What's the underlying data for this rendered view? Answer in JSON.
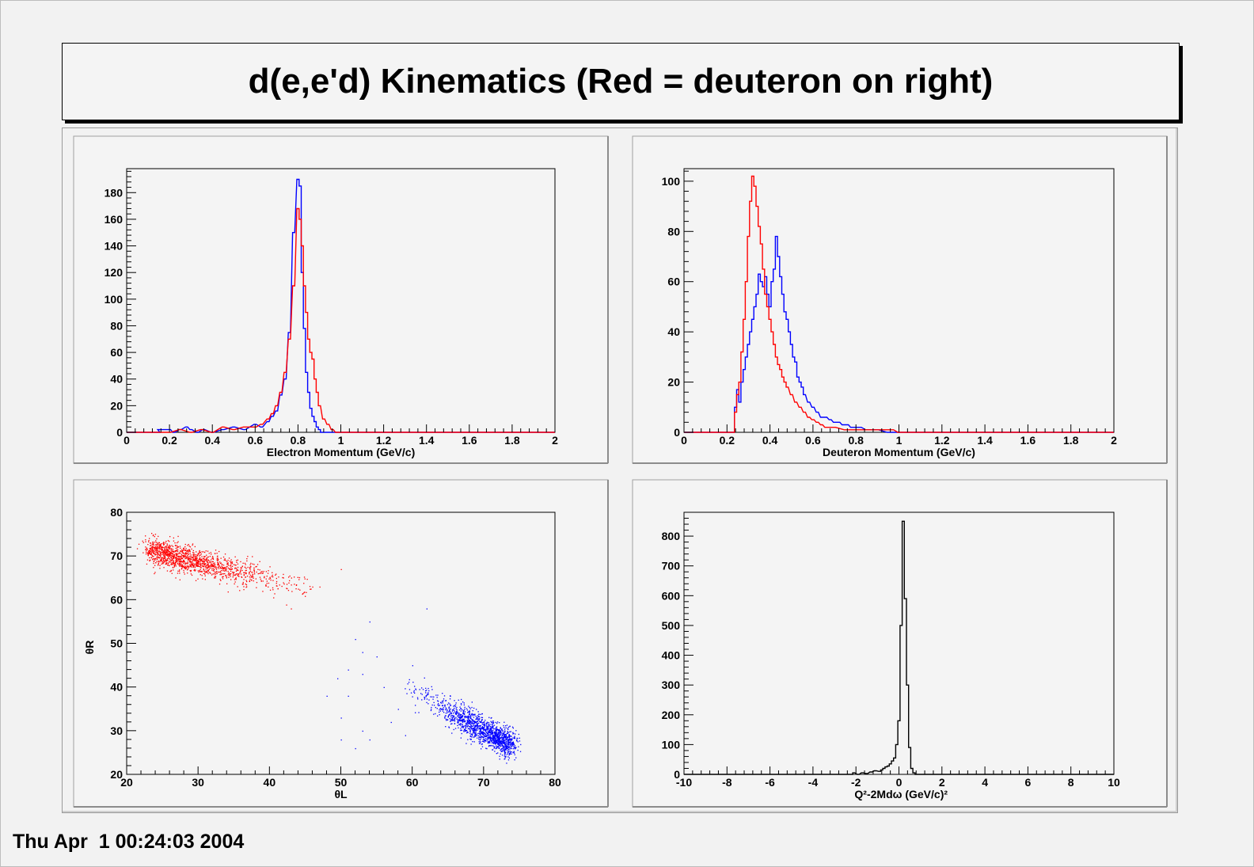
{
  "title": "d(e,e'd) Kinematics (Red = deuteron on right)",
  "datestamp": "Thu Apr  1 00:24:03 2004",
  "colors": {
    "background": "#f2f2f2",
    "frame_fill": "#f4f4f4",
    "red": "#ff0000",
    "blue": "#0000ff",
    "black": "#000000"
  },
  "chart_data": [
    {
      "type": "histogram",
      "xlabel": "Electron Momentum (GeV/c)",
      "ylabel": "",
      "xlim": [
        0,
        2
      ],
      "ylim": [
        0,
        198
      ],
      "x_ticks": [
        0,
        0.2,
        0.4,
        0.6,
        0.8,
        1,
        1.2,
        1.4,
        1.6,
        1.8,
        2
      ],
      "x_tick_labels": [
        "0",
        "0.2",
        "0.4",
        "0.6",
        "0.8",
        "1",
        "1.2",
        "1.4",
        "1.6",
        "1.8",
        "2"
      ],
      "y_ticks": [
        0,
        20,
        40,
        60,
        80,
        100,
        120,
        140,
        160,
        180
      ],
      "y_tick_labels": [
        "0",
        "20",
        "40",
        "60",
        "80",
        "100",
        "120",
        "140",
        "160",
        "180"
      ],
      "bin_width": 0.01,
      "series": [
        {
          "color": "#0000ff",
          "points": [
            [
              0,
              0
            ],
            [
              0.15,
              0
            ],
            [
              0.15,
              2
            ],
            [
              0.2,
              2
            ],
            [
              0.22,
              0
            ],
            [
              0.25,
              2
            ],
            [
              0.28,
              4
            ],
            [
              0.3,
              2
            ],
            [
              0.33,
              0
            ],
            [
              0.36,
              2
            ],
            [
              0.4,
              0
            ],
            [
              0.45,
              2
            ],
            [
              0.5,
              4
            ],
            [
              0.55,
              2
            ],
            [
              0.6,
              6
            ],
            [
              0.63,
              4
            ],
            [
              0.66,
              8
            ],
            [
              0.68,
              12
            ],
            [
              0.7,
              16
            ],
            [
              0.72,
              28
            ],
            [
              0.74,
              40
            ],
            [
              0.76,
              75
            ],
            [
              0.78,
              150
            ],
            [
              0.8,
              190
            ],
            [
              0.81,
              185
            ],
            [
              0.82,
              120
            ],
            [
              0.83,
              78
            ],
            [
              0.84,
              45
            ],
            [
              0.85,
              30
            ],
            [
              0.86,
              18
            ],
            [
              0.87,
              12
            ],
            [
              0.88,
              8
            ],
            [
              0.89,
              4
            ],
            [
              0.9,
              2
            ],
            [
              0.91,
              0
            ],
            [
              2,
              0
            ]
          ]
        },
        {
          "color": "#ff0000",
          "points": [
            [
              0,
              0
            ],
            [
              0.2,
              0
            ],
            [
              0.25,
              2
            ],
            [
              0.3,
              0
            ],
            [
              0.35,
              2
            ],
            [
              0.4,
              0
            ],
            [
              0.45,
              4
            ],
            [
              0.5,
              2
            ],
            [
              0.55,
              4
            ],
            [
              0.6,
              4
            ],
            [
              0.63,
              6
            ],
            [
              0.66,
              10
            ],
            [
              0.68,
              14
            ],
            [
              0.7,
              20
            ],
            [
              0.72,
              30
            ],
            [
              0.74,
              45
            ],
            [
              0.76,
              70
            ],
            [
              0.78,
              110
            ],
            [
              0.8,
              168
            ],
            [
              0.81,
              160
            ],
            [
              0.82,
              140
            ],
            [
              0.83,
              110
            ],
            [
              0.84,
              90
            ],
            [
              0.85,
              70
            ],
            [
              0.86,
              60
            ],
            [
              0.87,
              55
            ],
            [
              0.88,
              40
            ],
            [
              0.89,
              30
            ],
            [
              0.9,
              20
            ],
            [
              0.92,
              10
            ],
            [
              0.94,
              6
            ],
            [
              0.96,
              2
            ],
            [
              0.98,
              0
            ],
            [
              2,
              0
            ]
          ]
        }
      ]
    },
    {
      "type": "histogram",
      "xlabel": "Deuteron Momentum (GeV/c)",
      "ylabel": "",
      "xlim": [
        0,
        2
      ],
      "ylim": [
        0,
        105
      ],
      "x_ticks": [
        0,
        0.2,
        0.4,
        0.6,
        0.8,
        1,
        1.2,
        1.4,
        1.6,
        1.8,
        2
      ],
      "x_tick_labels": [
        "0",
        "0.2",
        "0.4",
        "0.6",
        "0.8",
        "1",
        "1.2",
        "1.4",
        "1.6",
        "1.8",
        "2"
      ],
      "y_ticks": [
        0,
        20,
        40,
        60,
        80,
        100
      ],
      "y_tick_labels": [
        "0",
        "20",
        "40",
        "60",
        "80",
        "100"
      ],
      "bin_width": 0.01,
      "series": [
        {
          "color": "#0000ff",
          "points": [
            [
              0,
              0
            ],
            [
              0.23,
              0
            ],
            [
              0.24,
              10
            ],
            [
              0.25,
              17
            ],
            [
              0.26,
              12
            ],
            [
              0.27,
              20
            ],
            [
              0.28,
              25
            ],
            [
              0.29,
              30
            ],
            [
              0.3,
              35
            ],
            [
              0.31,
              40
            ],
            [
              0.32,
              45
            ],
            [
              0.33,
              50
            ],
            [
              0.34,
              55
            ],
            [
              0.35,
              63
            ],
            [
              0.36,
              60
            ],
            [
              0.37,
              58
            ],
            [
              0.38,
              62
            ],
            [
              0.39,
              55
            ],
            [
              0.4,
              50
            ],
            [
              0.41,
              60
            ],
            [
              0.42,
              65
            ],
            [
              0.43,
              78
            ],
            [
              0.44,
              70
            ],
            [
              0.45,
              62
            ],
            [
              0.46,
              55
            ],
            [
              0.47,
              48
            ],
            [
              0.48,
              45
            ],
            [
              0.49,
              40
            ],
            [
              0.5,
              35
            ],
            [
              0.51,
              30
            ],
            [
              0.52,
              28
            ],
            [
              0.53,
              22
            ],
            [
              0.54,
              20
            ],
            [
              0.55,
              18
            ],
            [
              0.56,
              15
            ],
            [
              0.58,
              12
            ],
            [
              0.6,
              10
            ],
            [
              0.62,
              8
            ],
            [
              0.64,
              6
            ],
            [
              0.66,
              6
            ],
            [
              0.68,
              5
            ],
            [
              0.7,
              4
            ],
            [
              0.72,
              4
            ],
            [
              0.74,
              3
            ],
            [
              0.76,
              3
            ],
            [
              0.78,
              2
            ],
            [
              0.8,
              2
            ],
            [
              0.82,
              2
            ],
            [
              0.85,
              1
            ],
            [
              0.9,
              1
            ],
            [
              0.95,
              0
            ],
            [
              2,
              0
            ]
          ]
        },
        {
          "color": "#ff0000",
          "points": [
            [
              0,
              0
            ],
            [
              0.23,
              0
            ],
            [
              0.24,
              8
            ],
            [
              0.25,
              15
            ],
            [
              0.26,
              20
            ],
            [
              0.27,
              32
            ],
            [
              0.28,
              45
            ],
            [
              0.29,
              60
            ],
            [
              0.3,
              78
            ],
            [
              0.31,
              92
            ],
            [
              0.32,
              102
            ],
            [
              0.33,
              98
            ],
            [
              0.34,
              90
            ],
            [
              0.35,
              82
            ],
            [
              0.36,
              75
            ],
            [
              0.37,
              65
            ],
            [
              0.38,
              55
            ],
            [
              0.39,
              50
            ],
            [
              0.4,
              45
            ],
            [
              0.41,
              40
            ],
            [
              0.42,
              35
            ],
            [
              0.43,
              30
            ],
            [
              0.44,
              27
            ],
            [
              0.45,
              25
            ],
            [
              0.46,
              22
            ],
            [
              0.47,
              20
            ],
            [
              0.48,
              18
            ],
            [
              0.5,
              15
            ],
            [
              0.52,
              12
            ],
            [
              0.54,
              10
            ],
            [
              0.56,
              8
            ],
            [
              0.58,
              6
            ],
            [
              0.6,
              5
            ],
            [
              0.62,
              4
            ],
            [
              0.64,
              3
            ],
            [
              0.66,
              2
            ],
            [
              0.7,
              2
            ],
            [
              0.75,
              1
            ],
            [
              0.8,
              1
            ],
            [
              0.9,
              1
            ],
            [
              0.97,
              1
            ],
            [
              1,
              0
            ],
            [
              2,
              0
            ]
          ]
        }
      ]
    },
    {
      "type": "scatter",
      "xlabel": "θL",
      "ylabel": "θR",
      "xlim": [
        20,
        80
      ],
      "ylim": [
        20,
        80
      ],
      "x_ticks": [
        20,
        30,
        40,
        50,
        60,
        70,
        80
      ],
      "x_tick_labels": [
        "20",
        "30",
        "40",
        "50",
        "60",
        "70",
        "80"
      ],
      "y_ticks": [
        20,
        30,
        40,
        50,
        60,
        70,
        80
      ],
      "y_tick_labels": [
        "20",
        "30",
        "40",
        "50",
        "60",
        "70",
        "80"
      ],
      "series": [
        {
          "color": "#ff0000",
          "clusters": [
            {
              "x_range": [
                23,
                45
              ],
              "y_at_start": 71.5,
              "y_at_end": 62.5,
              "spread": 1.5,
              "count": 1400
            }
          ],
          "outliers": [
            [
              46,
              63
            ],
            [
              47,
              63
            ],
            [
              50,
              67
            ],
            [
              43,
              58
            ],
            [
              44,
              62.5
            ],
            [
              39,
              62
            ]
          ]
        },
        {
          "color": "#0000ff",
          "clusters": [
            {
              "x_range": [
                60,
                74
              ],
              "y_at_start": 39,
              "y_at_end": 26.5,
              "spread": 1.6,
              "count": 1400
            }
          ],
          "outliers": [
            [
              49.5,
              42
            ],
            [
              50,
              33
            ],
            [
              50,
              28
            ],
            [
              51,
              38
            ],
            [
              52,
              51
            ],
            [
              53,
              48
            ],
            [
              55,
              47
            ],
            [
              56,
              40
            ],
            [
              53,
              43
            ],
            [
              54,
              28
            ],
            [
              52,
              26
            ],
            [
              59,
              29
            ],
            [
              60,
              45
            ],
            [
              62,
              58
            ],
            [
              58,
              35
            ],
            [
              57,
              32
            ],
            [
              53,
              30
            ],
            [
              48,
              38
            ],
            [
              51,
              44
            ],
            [
              54,
              55
            ]
          ]
        }
      ]
    },
    {
      "type": "histogram",
      "xlabel": "Q²-2Mdω (GeV/c)²",
      "ylabel": "",
      "xlim": [
        -10,
        10
      ],
      "ylim": [
        0,
        880
      ],
      "x_ticks": [
        -10,
        -8,
        -6,
        -4,
        -2,
        0,
        2,
        4,
        6,
        8,
        10
      ],
      "x_tick_labels": [
        "-10",
        "-8",
        "-6",
        "-4",
        "-2",
        "0",
        "2",
        "4",
        "6",
        "8",
        "10"
      ],
      "y_ticks": [
        0,
        100,
        200,
        300,
        400,
        500,
        600,
        700,
        800
      ],
      "y_tick_labels": [
        "0",
        "100",
        "200",
        "300",
        "400",
        "500",
        "600",
        "700",
        "800"
      ],
      "bin_width": 0.1,
      "series": [
        {
          "color": "#000000",
          "points": [
            [
              -10,
              0
            ],
            [
              -2.2,
              0
            ],
            [
              -2.1,
              5
            ],
            [
              -1.9,
              0
            ],
            [
              -1.7,
              5
            ],
            [
              -1.5,
              3
            ],
            [
              -1.3,
              8
            ],
            [
              -1.1,
              12
            ],
            [
              -0.9,
              10
            ],
            [
              -0.8,
              15
            ],
            [
              -0.7,
              20
            ],
            [
              -0.6,
              25
            ],
            [
              -0.5,
              28
            ],
            [
              -0.4,
              35
            ],
            [
              -0.3,
              45
            ],
            [
              -0.2,
              55
            ],
            [
              -0.1,
              100
            ],
            [
              0,
              180
            ],
            [
              0.1,
              500
            ],
            [
              0.2,
              850
            ],
            [
              0.3,
              590
            ],
            [
              0.4,
              300
            ],
            [
              0.5,
              90
            ],
            [
              0.6,
              20
            ],
            [
              0.7,
              5
            ],
            [
              0.8,
              0
            ],
            [
              10,
              0
            ]
          ]
        }
      ]
    }
  ]
}
